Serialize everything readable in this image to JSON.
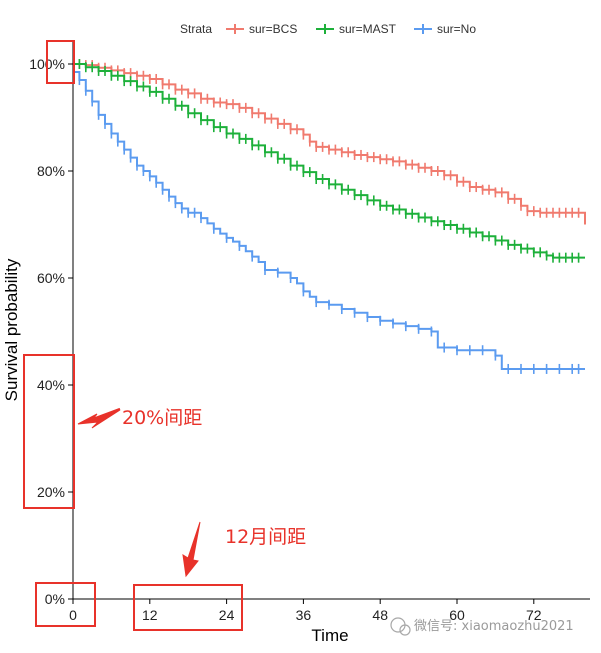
{
  "chart_data": {
    "type": "line",
    "subtype": "kaplan-meier step",
    "title": "",
    "xlabel": "Time",
    "ylabel": "Survival probability",
    "xlim": [
      0,
      80
    ],
    "ylim": [
      0,
      1
    ],
    "x_ticks": [
      {
        "value": 0,
        "label": "0"
      },
      {
        "value": 12,
        "label": "12"
      },
      {
        "value": 24,
        "label": "24"
      },
      {
        "value": 36,
        "label": "36"
      },
      {
        "value": 48,
        "label": "48"
      },
      {
        "value": 60,
        "label": "60"
      },
      {
        "value": 72,
        "label": "72"
      }
    ],
    "y_ticks": [
      {
        "value": 0,
        "label": "0%"
      },
      {
        "value": 0.2,
        "label": "20%"
      },
      {
        "value": 0.4,
        "label": "40%"
      },
      {
        "value": 0.6,
        "label": "60%"
      },
      {
        "value": 0.8,
        "label": "80%"
      },
      {
        "value": 1.0,
        "label": "100%"
      }
    ],
    "legend": {
      "title": "Strata",
      "position": "top",
      "entries": [
        "sur=BCS",
        "sur=MAST",
        "sur=No"
      ]
    },
    "series": [
      {
        "name": "sur=BCS",
        "color": "#f07a6e",
        "points": [
          [
            0,
            1.0
          ],
          [
            2,
            0.998
          ],
          [
            4,
            0.993
          ],
          [
            6,
            0.988
          ],
          [
            8,
            0.983
          ],
          [
            10,
            0.978
          ],
          [
            12,
            0.972
          ],
          [
            14,
            0.962
          ],
          [
            16,
            0.952
          ],
          [
            18,
            0.945
          ],
          [
            20,
            0.935
          ],
          [
            22,
            0.928
          ],
          [
            24,
            0.925
          ],
          [
            26,
            0.918
          ],
          [
            28,
            0.908
          ],
          [
            30,
            0.898
          ],
          [
            32,
            0.888
          ],
          [
            34,
            0.878
          ],
          [
            36,
            0.868
          ],
          [
            37,
            0.855
          ],
          [
            38,
            0.845
          ],
          [
            40,
            0.84
          ],
          [
            42,
            0.835
          ],
          [
            44,
            0.83
          ],
          [
            46,
            0.826
          ],
          [
            48,
            0.822
          ],
          [
            50,
            0.818
          ],
          [
            52,
            0.812
          ],
          [
            54,
            0.806
          ],
          [
            56,
            0.8
          ],
          [
            58,
            0.792
          ],
          [
            60,
            0.78
          ],
          [
            62,
            0.77
          ],
          [
            64,
            0.765
          ],
          [
            66,
            0.76
          ],
          [
            68,
            0.748
          ],
          [
            70,
            0.735
          ],
          [
            71,
            0.725
          ],
          [
            73,
            0.722
          ],
          [
            76,
            0.722
          ],
          [
            79,
            0.722
          ],
          [
            80,
            0.7
          ]
        ],
        "censor_times": [
          1,
          2,
          3,
          4,
          5,
          6,
          7,
          8,
          9,
          10,
          11,
          12,
          13,
          14,
          15,
          16,
          17,
          18,
          19,
          20,
          21,
          22,
          23,
          24,
          25,
          26,
          27,
          28,
          29,
          30,
          31,
          32,
          33,
          34,
          35,
          36,
          37,
          38,
          39,
          40,
          41,
          42,
          43,
          44,
          45,
          46,
          47,
          48,
          49,
          50,
          51,
          52,
          53,
          54,
          55,
          56,
          57,
          58,
          59,
          60,
          61,
          62,
          63,
          64,
          65,
          66,
          67,
          68,
          69,
          70,
          71,
          72,
          73,
          74,
          75,
          76,
          77,
          78,
          79
        ]
      },
      {
        "name": "sur=MAST",
        "color": "#1db03a",
        "points": [
          [
            0,
            1.0
          ],
          [
            2,
            0.994
          ],
          [
            4,
            0.987
          ],
          [
            6,
            0.978
          ],
          [
            8,
            0.968
          ],
          [
            10,
            0.958
          ],
          [
            12,
            0.948
          ],
          [
            14,
            0.935
          ],
          [
            16,
            0.922
          ],
          [
            18,
            0.908
          ],
          [
            20,
            0.895
          ],
          [
            22,
            0.882
          ],
          [
            24,
            0.87
          ],
          [
            26,
            0.86
          ],
          [
            28,
            0.848
          ],
          [
            30,
            0.835
          ],
          [
            32,
            0.823
          ],
          [
            34,
            0.81
          ],
          [
            36,
            0.798
          ],
          [
            38,
            0.785
          ],
          [
            40,
            0.775
          ],
          [
            42,
            0.765
          ],
          [
            44,
            0.755
          ],
          [
            46,
            0.745
          ],
          [
            48,
            0.735
          ],
          [
            50,
            0.728
          ],
          [
            52,
            0.72
          ],
          [
            54,
            0.713
          ],
          [
            56,
            0.706
          ],
          [
            58,
            0.699
          ],
          [
            60,
            0.692
          ],
          [
            62,
            0.685
          ],
          [
            64,
            0.678
          ],
          [
            66,
            0.67
          ],
          [
            68,
            0.662
          ],
          [
            70,
            0.655
          ],
          [
            72,
            0.648
          ],
          [
            74,
            0.642
          ],
          [
            75,
            0.638
          ],
          [
            78,
            0.638
          ],
          [
            80,
            0.638
          ]
        ],
        "censor_times": [
          1,
          2,
          3,
          4,
          5,
          6,
          7,
          8,
          9,
          10,
          11,
          12,
          13,
          14,
          15,
          16,
          17,
          18,
          19,
          20,
          21,
          22,
          23,
          24,
          25,
          26,
          27,
          28,
          29,
          30,
          31,
          32,
          33,
          34,
          35,
          36,
          37,
          38,
          39,
          40,
          41,
          42,
          43,
          44,
          45,
          46,
          47,
          48,
          49,
          50,
          51,
          52,
          53,
          54,
          55,
          56,
          57,
          58,
          59,
          60,
          61,
          62,
          63,
          64,
          65,
          66,
          67,
          68,
          69,
          70,
          71,
          72,
          73,
          74,
          75,
          76,
          77,
          78,
          79
        ]
      },
      {
        "name": "sur=No",
        "color": "#5b9bf0",
        "points": [
          [
            0,
            0.985
          ],
          [
            1,
            0.97
          ],
          [
            2,
            0.95
          ],
          [
            3,
            0.93
          ],
          [
            4,
            0.905
          ],
          [
            5,
            0.888
          ],
          [
            6,
            0.87
          ],
          [
            7,
            0.855
          ],
          [
            8,
            0.84
          ],
          [
            9,
            0.825
          ],
          [
            10,
            0.81
          ],
          [
            11,
            0.8
          ],
          [
            12,
            0.79
          ],
          [
            13,
            0.778
          ],
          [
            14,
            0.765
          ],
          [
            15,
            0.752
          ],
          [
            16,
            0.74
          ],
          [
            17,
            0.73
          ],
          [
            18,
            0.722
          ],
          [
            20,
            0.712
          ],
          [
            21,
            0.702
          ],
          [
            22,
            0.692
          ],
          [
            23,
            0.683
          ],
          [
            24,
            0.675
          ],
          [
            25,
            0.668
          ],
          [
            26,
            0.66
          ],
          [
            27,
            0.65
          ],
          [
            28,
            0.64
          ],
          [
            29,
            0.63
          ],
          [
            30,
            0.615
          ],
          [
            32,
            0.61
          ],
          [
            34,
            0.6
          ],
          [
            35,
            0.59
          ],
          [
            36,
            0.575
          ],
          [
            37,
            0.565
          ],
          [
            38,
            0.555
          ],
          [
            40,
            0.55
          ],
          [
            42,
            0.542
          ],
          [
            44,
            0.535
          ],
          [
            46,
            0.527
          ],
          [
            48,
            0.52
          ],
          [
            50,
            0.515
          ],
          [
            52,
            0.51
          ],
          [
            54,
            0.505
          ],
          [
            56,
            0.5
          ],
          [
            57,
            0.47
          ],
          [
            60,
            0.465
          ],
          [
            62,
            0.465
          ],
          [
            64,
            0.465
          ],
          [
            66,
            0.455
          ],
          [
            67,
            0.43
          ],
          [
            70,
            0.43
          ],
          [
            75,
            0.43
          ],
          [
            80,
            0.43
          ]
        ],
        "censor_times": [
          1,
          2,
          3,
          4,
          5,
          6,
          7,
          8,
          9,
          10,
          11,
          12,
          13,
          14,
          15,
          16,
          17,
          18,
          19,
          20,
          22,
          24,
          26,
          28,
          30,
          32,
          34,
          36,
          38,
          40,
          42,
          44,
          46,
          48,
          50,
          52,
          54,
          56,
          58,
          60,
          62,
          64,
          66,
          68,
          70,
          72,
          74,
          76,
          78,
          79
        ]
      }
    ],
    "annotations": [
      {
        "text": "20%间距",
        "refers_to": "y-axis interval",
        "color": "#e8322a"
      },
      {
        "text": "12月间距",
        "refers_to": "x-axis interval",
        "color": "#e8322a"
      }
    ]
  },
  "watermark": {
    "text": "微信号: xiaomaozhu2021"
  }
}
